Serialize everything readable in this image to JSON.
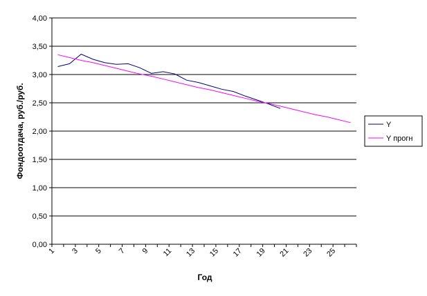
{
  "chart_data": {
    "type": "line",
    "y_label": "Фондоотдача, руб./руб.",
    "x_label": "Год",
    "categories": [
      1,
      null,
      3,
      null,
      5,
      null,
      7,
      null,
      9,
      null,
      11,
      null,
      13,
      null,
      15,
      null,
      17,
      null,
      19,
      null,
      21,
      null,
      23,
      null,
      25,
      null
    ],
    "series": [
      {
        "name": "Y",
        "color": "#000080",
        "values": [
          3.14,
          3.19,
          3.36,
          3.27,
          3.21,
          3.18,
          3.19,
          3.12,
          3.02,
          3.05,
          3.01,
          2.9,
          2.86,
          2.8,
          2.74,
          2.7,
          2.62,
          2.55,
          2.48,
          2.4,
          null,
          null,
          null,
          null,
          null,
          null
        ]
      },
      {
        "name": "Y прогн",
        "color": "#ff00ff",
        "values": [
          3.35,
          3.3,
          3.25,
          3.21,
          3.16,
          3.11,
          3.06,
          3.01,
          2.97,
          2.92,
          2.87,
          2.82,
          2.77,
          2.73,
          2.68,
          2.63,
          2.58,
          2.53,
          2.49,
          2.44,
          2.39,
          2.34,
          2.29,
          2.25,
          2.2,
          2.15
        ]
      }
    ],
    "ylim": [
      0,
      4
    ],
    "yticks": [
      {
        "value": 0,
        "label": "0,00"
      },
      {
        "value": 0.5,
        "label": "0,50"
      },
      {
        "value": 1,
        "label": "1,00"
      },
      {
        "value": 1.5,
        "label": "1,50"
      },
      {
        "value": 2,
        "label": "2,00"
      },
      {
        "value": 2.5,
        "label": "2,50"
      },
      {
        "value": 3,
        "label": "3,00"
      },
      {
        "value": 3.5,
        "label": "3,50"
      },
      {
        "value": 4,
        "label": "4,00"
      }
    ],
    "grid": true,
    "legend": "right"
  }
}
